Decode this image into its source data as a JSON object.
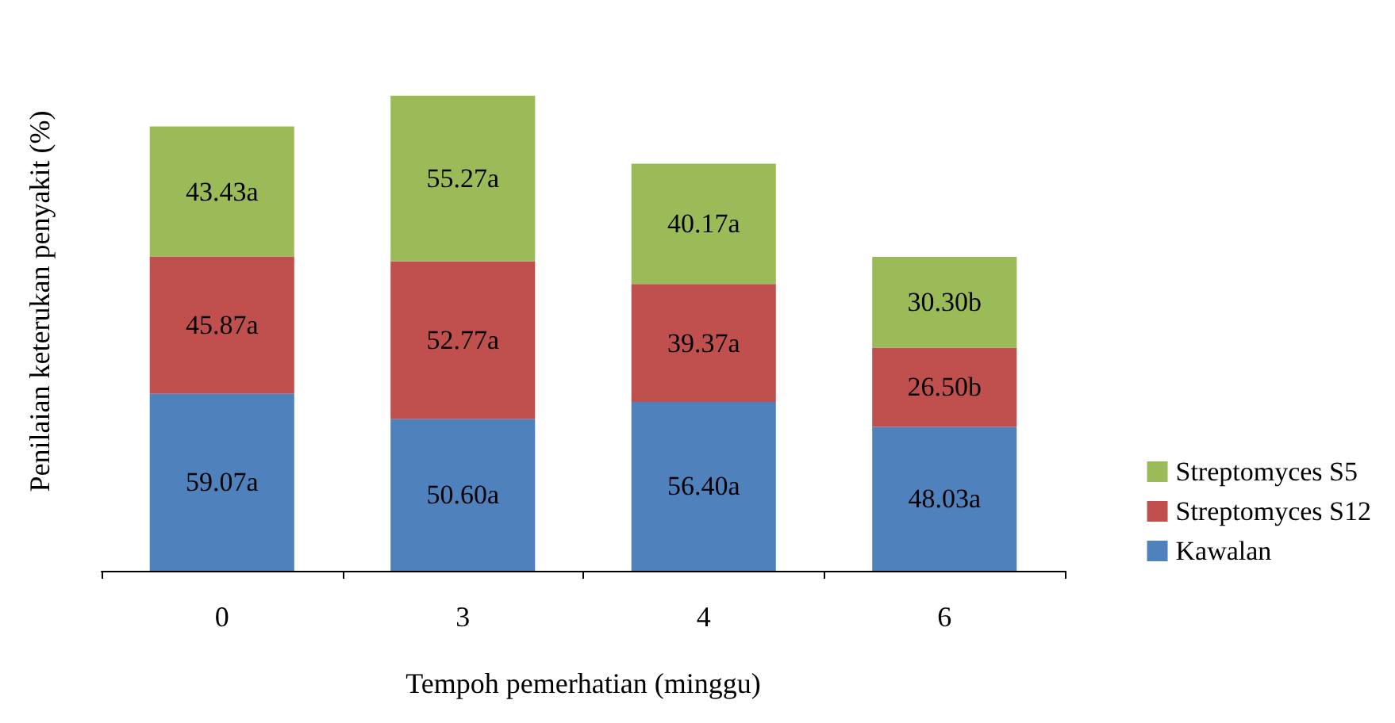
{
  "chart_data": {
    "type": "bar",
    "stacked": true,
    "xlabel": "Tempoh pemerhatian (minggu)",
    "ylabel": "Penilaian keterukan penyakit (%)",
    "categories": [
      "0",
      "3",
      "4",
      "6"
    ],
    "legend": "right",
    "grid": false,
    "series": [
      {
        "name": "Kawalan",
        "color": "#4f81bd",
        "values": [
          59.07,
          50.6,
          56.4,
          48.03
        ],
        "value_labels": [
          "59.07a",
          "50.60a",
          "56.40a",
          "48.03a"
        ]
      },
      {
        "name": "Streptomyces S12",
        "color": "#c0504d",
        "values": [
          45.87,
          52.77,
          39.37,
          26.5
        ],
        "value_labels": [
          "45.87a",
          "52.77a",
          "39.37a",
          "26.50b"
        ]
      },
      {
        "name": "Streptomyces S5",
        "color": "#9bbb59",
        "values": [
          43.43,
          55.27,
          40.17,
          30.3
        ],
        "value_labels": [
          "43.43a",
          "55.27a",
          "40.17a",
          "30.30b"
        ]
      }
    ]
  }
}
